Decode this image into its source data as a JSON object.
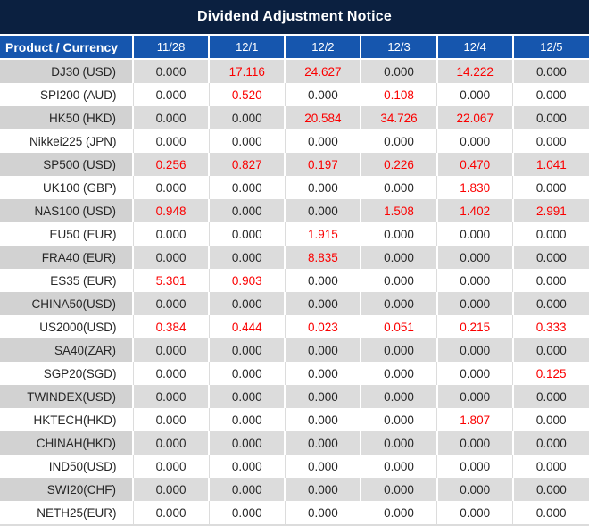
{
  "title": "Dividend Adjustment Notice",
  "colors": {
    "title_bg": "#0B2040",
    "header_bg": "#1656AE",
    "row_gray": "#DCDCDC",
    "product_cell_gray": "#D2D2D2",
    "value_red": "#FB0000",
    "value_black": "#262626"
  },
  "table": {
    "product_header": "Product / Currency",
    "date_headers": [
      "11/28",
      "12/1",
      "12/2",
      "12/3",
      "12/4",
      "12/5"
    ],
    "rows": [
      {
        "product": "DJ30 (USD)",
        "values": [
          "0.000",
          "17.116",
          "24.627",
          "0.000",
          "14.222",
          "0.000"
        ],
        "red": [
          1,
          2,
          4
        ]
      },
      {
        "product": "SPI200 (AUD)",
        "values": [
          "0.000",
          "0.520",
          "0.000",
          "0.108",
          "0.000",
          "0.000"
        ],
        "red": [
          1,
          3
        ]
      },
      {
        "product": "HK50 (HKD)",
        "values": [
          "0.000",
          "0.000",
          "20.584",
          "34.726",
          "22.067",
          "0.000"
        ],
        "red": [
          2,
          3,
          4
        ]
      },
      {
        "product": "Nikkei225 (JPN)",
        "values": [
          "0.000",
          "0.000",
          "0.000",
          "0.000",
          "0.000",
          "0.000"
        ],
        "red": []
      },
      {
        "product": "SP500 (USD)",
        "values": [
          "0.256",
          "0.827",
          "0.197",
          "0.226",
          "0.470",
          "1.041"
        ],
        "red": [
          0,
          1,
          2,
          3,
          4,
          5
        ]
      },
      {
        "product": "UK100 (GBP)",
        "values": [
          "0.000",
          "0.000",
          "0.000",
          "0.000",
          "1.830",
          "0.000"
        ],
        "red": [
          4
        ]
      },
      {
        "product": "NAS100 (USD)",
        "values": [
          "0.948",
          "0.000",
          "0.000",
          "1.508",
          "1.402",
          "2.991"
        ],
        "red": [
          0,
          3,
          4,
          5
        ]
      },
      {
        "product": "EU50 (EUR)",
        "values": [
          "0.000",
          "0.000",
          "1.915",
          "0.000",
          "0.000",
          "0.000"
        ],
        "red": [
          2
        ]
      },
      {
        "product": "FRA40 (EUR)",
        "values": [
          "0.000",
          "0.000",
          "8.835",
          "0.000",
          "0.000",
          "0.000"
        ],
        "red": [
          2
        ]
      },
      {
        "product": "ES35 (EUR)",
        "values": [
          "5.301",
          "0.903",
          "0.000",
          "0.000",
          "0.000",
          "0.000"
        ],
        "red": [
          0,
          1
        ]
      },
      {
        "product": "CHINA50(USD)",
        "values": [
          "0.000",
          "0.000",
          "0.000",
          "0.000",
          "0.000",
          "0.000"
        ],
        "red": []
      },
      {
        "product": "US2000(USD)",
        "values": [
          "0.384",
          "0.444",
          "0.023",
          "0.051",
          "0.215",
          "0.333"
        ],
        "red": [
          0,
          1,
          2,
          3,
          4,
          5
        ]
      },
      {
        "product": "SA40(ZAR)",
        "values": [
          "0.000",
          "0.000",
          "0.000",
          "0.000",
          "0.000",
          "0.000"
        ],
        "red": []
      },
      {
        "product": "SGP20(SGD)",
        "values": [
          "0.000",
          "0.000",
          "0.000",
          "0.000",
          "0.000",
          "0.125"
        ],
        "red": [
          5
        ]
      },
      {
        "product": "TWINDEX(USD)",
        "values": [
          "0.000",
          "0.000",
          "0.000",
          "0.000",
          "0.000",
          "0.000"
        ],
        "red": []
      },
      {
        "product": "HKTECH(HKD)",
        "values": [
          "0.000",
          "0.000",
          "0.000",
          "0.000",
          "1.807",
          "0.000"
        ],
        "red": [
          4
        ]
      },
      {
        "product": "CHINAH(HKD)",
        "values": [
          "0.000",
          "0.000",
          "0.000",
          "0.000",
          "0.000",
          "0.000"
        ],
        "red": []
      },
      {
        "product": "IND50(USD)",
        "values": [
          "0.000",
          "0.000",
          "0.000",
          "0.000",
          "0.000",
          "0.000"
        ],
        "red": []
      },
      {
        "product": "SWI20(CHF)",
        "values": [
          "0.000",
          "0.000",
          "0.000",
          "0.000",
          "0.000",
          "0.000"
        ],
        "red": []
      },
      {
        "product": "NETH25(EUR)",
        "values": [
          "0.000",
          "0.000",
          "0.000",
          "0.000",
          "0.000",
          "0.000"
        ],
        "red": []
      }
    ]
  }
}
